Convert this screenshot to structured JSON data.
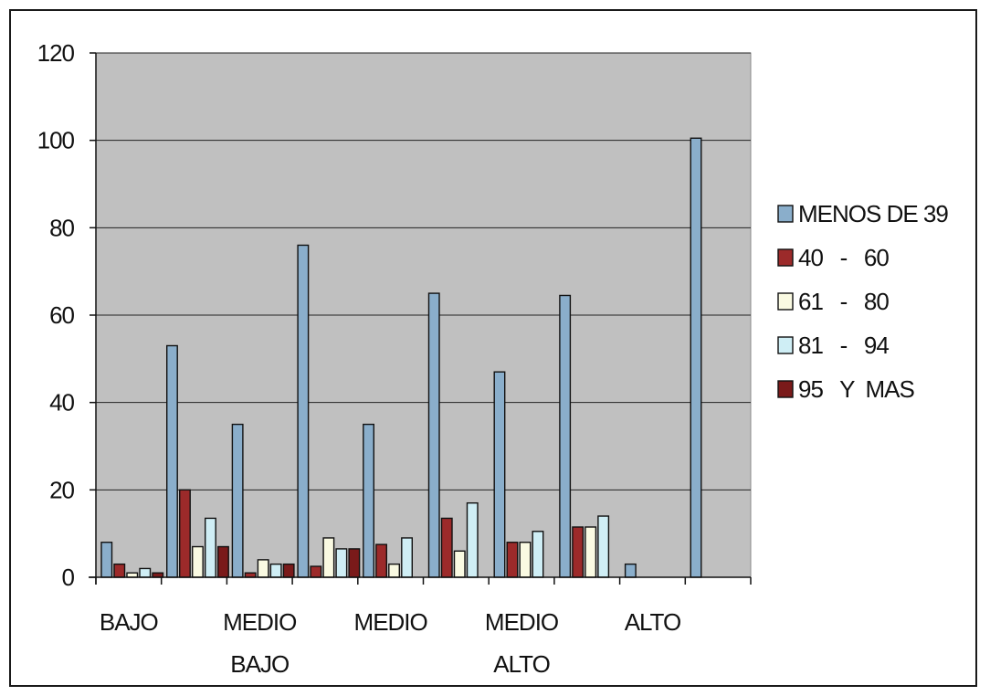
{
  "chart_data": {
    "type": "bar",
    "title": "",
    "xlabel": "",
    "ylabel": "",
    "ylim": [
      0,
      120
    ],
    "yticks": [
      0,
      20,
      40,
      60,
      80,
      100,
      120
    ],
    "grid": true,
    "legend_position": "right",
    "plot_background": "#c0c0c0",
    "categories": [
      {
        "lines": [
          "BAJO"
        ]
      },
      {
        "lines": [
          "MEDIO",
          "BAJO"
        ]
      },
      {
        "lines": [
          "MEDIO"
        ]
      },
      {
        "lines": [
          "MEDIO",
          "ALTO"
        ]
      },
      {
        "lines": [
          "ALTO"
        ]
      }
    ],
    "groups": [
      {
        "values": [
          8,
          3,
          1,
          2,
          1
        ]
      },
      {
        "values": [
          53,
          20,
          7,
          13.5,
          7
        ]
      },
      {
        "values": [
          35,
          1,
          4,
          3,
          3
        ]
      },
      {
        "values": [
          76,
          2.5,
          9,
          6.5,
          6.5
        ]
      },
      {
        "values": [
          35,
          7.5,
          3,
          9,
          null
        ]
      },
      {
        "values": [
          65,
          13.5,
          6,
          17,
          null
        ]
      },
      {
        "values": [
          47,
          8,
          8,
          10.5,
          null
        ]
      },
      {
        "values": [
          64.5,
          11.5,
          11.5,
          14,
          null
        ]
      },
      {
        "values": [
          3,
          null,
          null,
          null,
          null
        ]
      },
      {
        "values": [
          100.5,
          null,
          null,
          null,
          null
        ]
      }
    ],
    "series": [
      {
        "name": "MENOS DE 39",
        "color": "#8aaecb"
      },
      {
        "name": "40   -   60",
        "color": "#9c2a2a"
      },
      {
        "name": "61   -   80",
        "color": "#fafae2"
      },
      {
        "name": "81   -   94",
        "color": "#cfeef5"
      },
      {
        "name": "95   Y  MAS",
        "color": "#7a1a1a"
      }
    ]
  }
}
